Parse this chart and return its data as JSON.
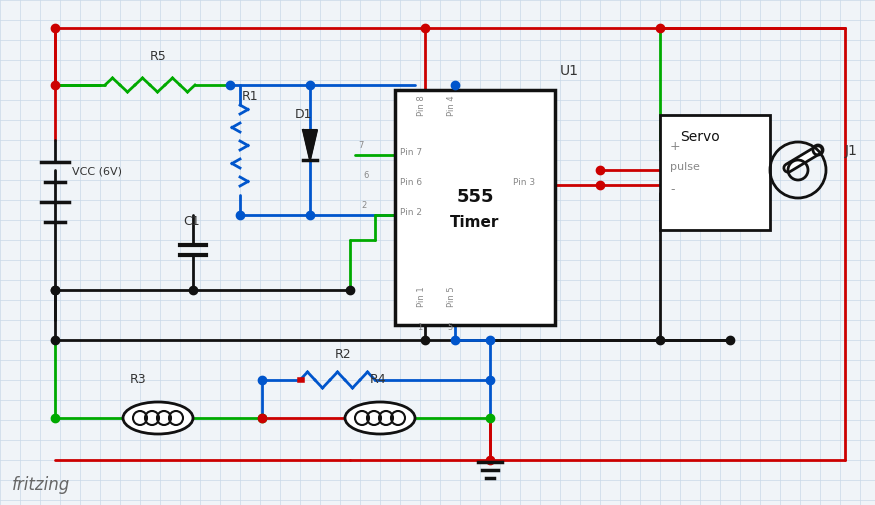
{
  "bg_color": "#f0f4f8",
  "grid_color": "#c8d8e8",
  "wire_colors": {
    "red": "#cc0000",
    "green": "#00aa00",
    "blue": "#0055cc",
    "black": "#111111",
    "dark": "#222222"
  },
  "component_colors": {
    "box_fill": "#ffffff",
    "box_edge": "#111111",
    "text": "#333333",
    "pin_text": "#888888"
  },
  "title": "fritzing",
  "vcc_label": "VCC (6V)",
  "u1_label": "U1",
  "j1_label": "J1",
  "timer_label1": "555",
  "timer_label2": "Timer",
  "servo_label": "Servo",
  "servo_pulse": "pulse",
  "r_labels": [
    "R5",
    "R1",
    "D1",
    "C1",
    "R2",
    "R3",
    "R4"
  ],
  "figsize": [
    8.75,
    5.05
  ],
  "dpi": 100
}
